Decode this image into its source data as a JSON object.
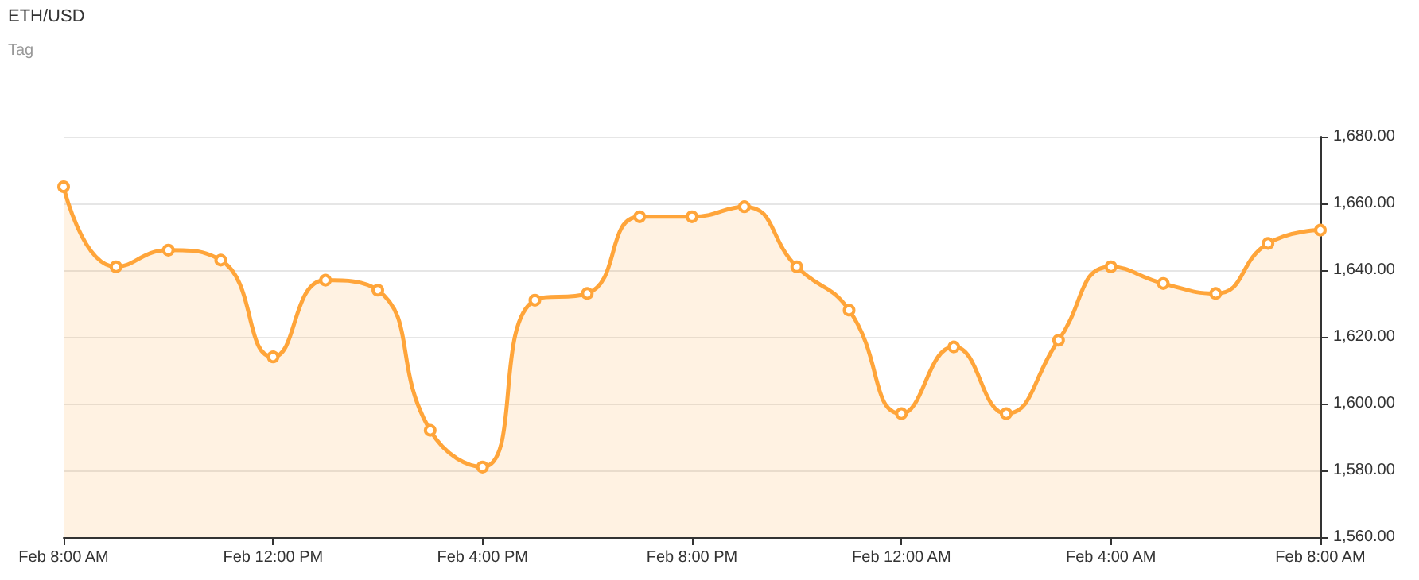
{
  "chart_data": {
    "type": "area",
    "title": "ETH/USD",
    "subtitle": "Tag",
    "categories": [
      "Feb 8:00 AM",
      null,
      null,
      null,
      "Feb 12:00 PM",
      null,
      null,
      null,
      "Feb 4:00 PM",
      null,
      null,
      null,
      "Feb 8:00 PM",
      null,
      null,
      null,
      "Feb 12:00 AM",
      null,
      null,
      null,
      "Feb 4:00 AM",
      null,
      null,
      null,
      "Feb 8:00 AM"
    ],
    "series": [
      {
        "color": "#ffa53a",
        "values": [
          1665,
          1641,
          1646,
          1643,
          1614,
          1637,
          1634,
          1592,
          1581,
          1631,
          1633,
          1656,
          1656,
          1659,
          1641,
          1628,
          1597,
          1617,
          1597,
          1619,
          1641,
          1636,
          1633,
          1648,
          1652
        ]
      }
    ],
    "ylim": [
      1560,
      1680
    ],
    "yticks": [
      {
        "value": 1560,
        "label": "1,560.00"
      },
      {
        "value": 1580,
        "label": "1,580.00"
      },
      {
        "value": 1600,
        "label": "1,600.00"
      },
      {
        "value": 1620,
        "label": "1,620.00"
      },
      {
        "value": 1640,
        "label": "1,640.00"
      },
      {
        "value": 1660,
        "label": "1,660.00"
      },
      {
        "value": 1680,
        "label": "1,680.00"
      }
    ],
    "grid": "y",
    "marker": "circle",
    "line_style": "solid"
  }
}
